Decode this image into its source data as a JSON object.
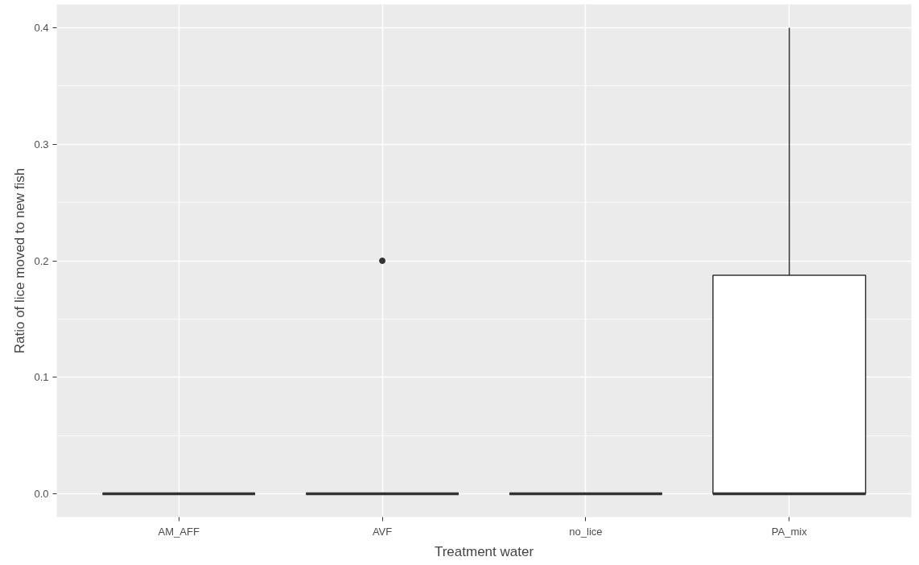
{
  "chart_data": {
    "type": "box",
    "xlabel": "Treatment water",
    "ylabel": "Ratio of lice moved to new fish",
    "categories": [
      "AM_AFF",
      "AVF",
      "no_lice",
      "PA_mix"
    ],
    "boxes": [
      {
        "low": 0,
        "q1": 0,
        "median": 0,
        "q3": 0,
        "high": 0
      },
      {
        "low": 0,
        "q1": 0,
        "median": 0,
        "q3": 0,
        "high": 0,
        "outliers": [
          0.2
        ]
      },
      {
        "low": 0,
        "q1": 0,
        "median": 0,
        "q3": 0,
        "high": 0
      },
      {
        "low": 0,
        "q1": 0,
        "median": 0,
        "q3": 0.1875,
        "high": 0.4
      }
    ],
    "colors": [
      "#333333",
      "#333333",
      "#333333",
      "#ffffff"
    ],
    "ylim": [
      -0.02,
      0.42
    ],
    "yticks": [
      {
        "value": 0,
        "label": "0.0"
      },
      {
        "value": 0.1,
        "label": "0.1"
      },
      {
        "value": 0.2,
        "label": "0.2"
      },
      {
        "value": 0.3,
        "label": "0.3"
      },
      {
        "value": 0.4,
        "label": "0.4"
      }
    ],
    "grid": true
  }
}
